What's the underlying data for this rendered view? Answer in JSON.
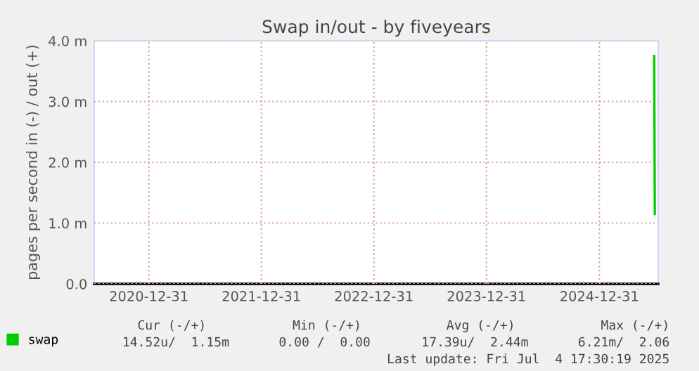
{
  "chart_data": {
    "type": "line",
    "title": "Swap in/out - by fiveyears",
    "ylabel": "pages per second in (-) / out (+)",
    "series": [
      {
        "name": "swap",
        "color": "#00cc00",
        "x": [
          "2025-06-27",
          "2025-06-29"
        ],
        "values": [
          3.75,
          1.15
        ]
      }
    ],
    "xlim": [
      "2020-07-07",
      "2025-07-10"
    ],
    "xticks": [
      "2020-12-31",
      "2021-12-31",
      "2022-12-31",
      "2023-12-31",
      "2024-12-31"
    ],
    "ylim": [
      0,
      4
    ],
    "yticks": [
      {
        "value": 0,
        "label": "0.0"
      },
      {
        "value": 1,
        "label": "1.0 m"
      },
      {
        "value": 2,
        "label": "2.0 m"
      },
      {
        "value": 3,
        "label": "3.0 m"
      },
      {
        "value": 4,
        "label": "4.0 m"
      }
    ],
    "grid": true,
    "legend": "bottom left",
    "marker": "none",
    "line_style": "solid",
    "annotations": [
      "Cur (-/+)",
      "Min (-/+)",
      "Avg (-/+)",
      "Max (-/+)",
      "14.52u/  1.15m",
      "0.00 /  0.00",
      "17.39u/  2.44m",
      "6.21m/  2.06",
      "Last update: Fri Jul  4 17:30:19 2025"
    ]
  }
}
